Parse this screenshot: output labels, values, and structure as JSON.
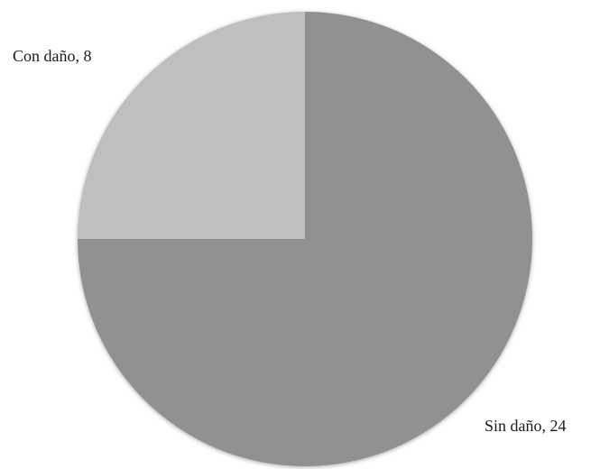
{
  "chart_data": {
    "type": "pie",
    "slices": [
      {
        "label": "Sin daño",
        "value": 24,
        "color": "#919191",
        "display": "Sin daño, 24"
      },
      {
        "label": "Con daño",
        "value": 8,
        "color": "#bfbfbf",
        "display": "Con daño, 8"
      }
    ],
    "start_angle_deg": 0,
    "direction": "clockwise",
    "title": "",
    "legend": "none",
    "data_labels": "category_value"
  }
}
